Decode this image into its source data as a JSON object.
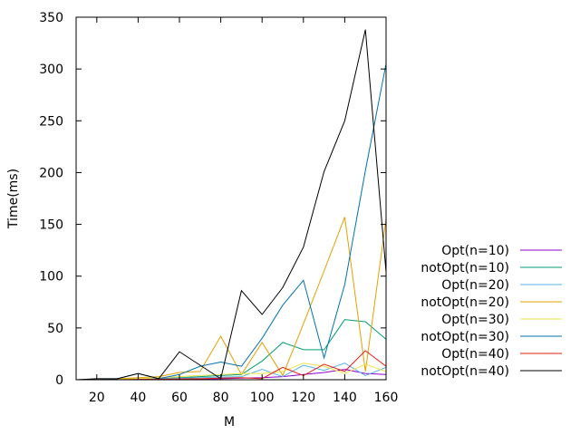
{
  "chart_data": {
    "type": "line",
    "title": "",
    "xlabel": "M",
    "ylabel": "Time(ms)",
    "xlim": [
      10,
      160
    ],
    "ylim": [
      0,
      350
    ],
    "x_ticks": [
      20,
      40,
      60,
      80,
      100,
      120,
      140,
      160
    ],
    "y_ticks": [
      0,
      50,
      100,
      150,
      200,
      250,
      300,
      350
    ],
    "grid": false,
    "legend_position": "right",
    "x": [
      10,
      20,
      30,
      40,
      50,
      60,
      70,
      80,
      90,
      100,
      110,
      120,
      130,
      140,
      150,
      160
    ],
    "series": [
      {
        "name": "Opt(n=10)",
        "color": "#9400d3",
        "values": [
          0,
          0,
          0,
          0.3,
          0.3,
          0.5,
          0.7,
          1,
          1.5,
          2,
          3,
          5,
          7,
          10,
          6,
          5
        ]
      },
      {
        "name": "notOpt(n=10)",
        "color": "#009e73",
        "values": [
          0,
          0,
          0.5,
          1,
          1,
          2,
          3,
          4,
          5,
          18,
          36,
          29,
          29,
          58,
          56,
          39
        ]
      },
      {
        "name": "Opt(n=20)",
        "color": "#56b4e9",
        "values": [
          0,
          0,
          0.5,
          1,
          1,
          1.5,
          2,
          2.5,
          3,
          10,
          3,
          14,
          9,
          16,
          4,
          12
        ]
      },
      {
        "name": "notOpt(n=20)",
        "color": "#e69f00",
        "values": [
          0,
          0,
          1,
          2,
          3,
          7,
          8,
          42,
          5,
          36,
          4,
          54,
          105,
          157,
          8,
          155
        ]
      },
      {
        "name": "Opt(n=30)",
        "color": "#f0e442",
        "values": [
          0,
          0,
          0.5,
          1,
          2,
          3,
          4,
          5,
          6,
          6,
          8,
          16,
          13,
          6,
          15,
          8
        ]
      },
      {
        "name": "notOpt(n=30)",
        "color": "#0072b2",
        "values": [
          0,
          0,
          1,
          6,
          1,
          5,
          13,
          17,
          13,
          40,
          72,
          96,
          21,
          92,
          202,
          305
        ]
      },
      {
        "name": "Opt(n=40)",
        "color": "#e51e10",
        "values": [
          0,
          0,
          0,
          0.3,
          0.5,
          0.8,
          1,
          1.5,
          2,
          1,
          12,
          4,
          15,
          8,
          28,
          13
        ]
      },
      {
        "name": "notOpt(n=40)",
        "color": "#000000",
        "values": [
          0,
          1,
          1,
          6,
          1,
          27,
          14,
          1,
          86,
          63,
          89,
          128,
          201,
          250,
          338,
          104
        ]
      }
    ]
  }
}
